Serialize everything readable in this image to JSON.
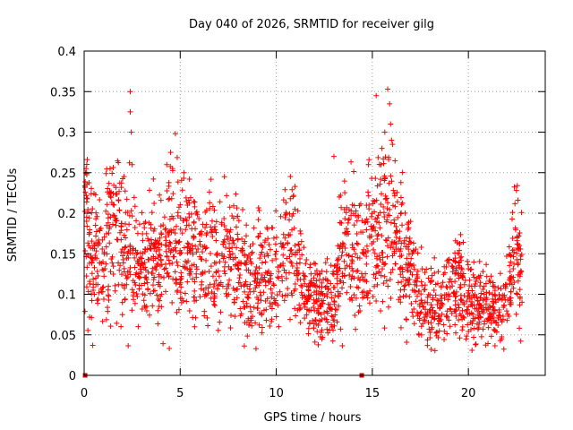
{
  "chart_data": {
    "type": "scatter",
    "title": "Day 040 of 2026, SRMTID for receiver gilg",
    "xlabel": "GPS time / hours",
    "ylabel": "SRMTID / TECUs",
    "xlim": [
      0,
      24
    ],
    "ylim": [
      0,
      0.4
    ],
    "x_ticks": [
      0,
      5,
      10,
      15,
      20
    ],
    "x_tick_labels": [
      "0",
      "5",
      "10",
      "15",
      "20"
    ],
    "y_ticks": [
      0,
      0.05,
      0.1,
      0.15,
      0.2,
      0.25,
      0.3,
      0.35,
      0.4
    ],
    "y_tick_labels": [
      "0",
      "0.05",
      "0.1",
      "0.15",
      "0.2",
      "0.25",
      "0.3",
      "0.35",
      "0.4"
    ],
    "grid": true,
    "marker": "plus",
    "color": "#ff0000",
    "baseline_markers_x": [
      0.05,
      14.45
    ],
    "series": [
      {
        "name": "SRMTID",
        "trend": [
          [
            0.0,
            0.18
          ],
          [
            0.5,
            0.15
          ],
          [
            1.0,
            0.14
          ],
          [
            1.5,
            0.19
          ],
          [
            2.0,
            0.16
          ],
          [
            2.5,
            0.15
          ],
          [
            3.0,
            0.13
          ],
          [
            3.5,
            0.15
          ],
          [
            4.0,
            0.14
          ],
          [
            4.5,
            0.17
          ],
          [
            5.0,
            0.15
          ],
          [
            5.5,
            0.15
          ],
          [
            6.0,
            0.14
          ],
          [
            6.5,
            0.15
          ],
          [
            7.0,
            0.14
          ],
          [
            7.5,
            0.14
          ],
          [
            8.0,
            0.14
          ],
          [
            8.5,
            0.12
          ],
          [
            9.0,
            0.12
          ],
          [
            9.5,
            0.11
          ],
          [
            10.0,
            0.13
          ],
          [
            10.5,
            0.16
          ],
          [
            11.0,
            0.15
          ],
          [
            11.5,
            0.1
          ],
          [
            12.0,
            0.09
          ],
          [
            12.5,
            0.09
          ],
          [
            13.0,
            0.09
          ],
          [
            13.5,
            0.17
          ],
          [
            14.0,
            0.15
          ],
          [
            14.5,
            0.13
          ],
          [
            15.0,
            0.17
          ],
          [
            15.5,
            0.19
          ],
          [
            16.0,
            0.18
          ],
          [
            16.5,
            0.16
          ],
          [
            17.0,
            0.12
          ],
          [
            17.5,
            0.1
          ],
          [
            18.0,
            0.08
          ],
          [
            18.5,
            0.08
          ],
          [
            19.0,
            0.1
          ],
          [
            19.5,
            0.11
          ],
          [
            20.0,
            0.1
          ],
          [
            20.5,
            0.09
          ],
          [
            21.0,
            0.08
          ],
          [
            21.5,
            0.07
          ],
          [
            22.0,
            0.1
          ],
          [
            22.5,
            0.16
          ],
          [
            22.8,
            0.11
          ]
        ],
        "spikes": [
          [
            2.4,
            0.35
          ],
          [
            2.4,
            0.325
          ],
          [
            2.45,
            0.3
          ],
          [
            2.5,
            0.26
          ],
          [
            4.75,
            0.298
          ],
          [
            4.5,
            0.275
          ],
          [
            4.3,
            0.26
          ],
          [
            15.2,
            0.345
          ],
          [
            15.8,
            0.353
          ],
          [
            15.9,
            0.335
          ],
          [
            15.95,
            0.31
          ],
          [
            16.0,
            0.29
          ],
          [
            16.05,
            0.285
          ],
          [
            15.65,
            0.3
          ],
          [
            15.5,
            0.28
          ],
          [
            13.0,
            0.27
          ],
          [
            0.1,
            0.255
          ],
          [
            1.35,
            0.255
          ],
          [
            5.2,
            0.25
          ],
          [
            7.3,
            0.245
          ],
          [
            14.8,
            0.26
          ],
          [
            22.5,
            0.228
          ]
        ],
        "points_per_hour": 95
      }
    ]
  }
}
